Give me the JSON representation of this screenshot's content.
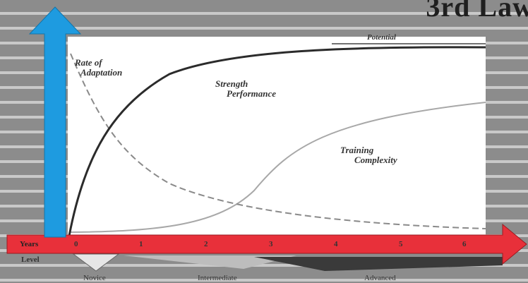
{
  "title": "3rd Law",
  "colors": {
    "background": "#8f8f8f",
    "plot_background": "#ffffff",
    "y_arrow": "#1e9be0",
    "x_arrow": "#e8303a",
    "strength_curve": "#2b2b2b",
    "complexity_curve": "#a8a8a8",
    "adaptation_curve": "#8a8a8a"
  },
  "curves": {
    "potential": {
      "label": "Potential"
    },
    "rate_of_adaptation": {
      "label_line1": "Rate of",
      "label_line2": "Adaptation"
    },
    "strength_performance": {
      "label_line1": "Strength",
      "label_line2": "Performance"
    },
    "training_complexity": {
      "label_line1": "Training",
      "label_line2": "Complexity"
    }
  },
  "x_axis": {
    "label": "Years",
    "ticks": [
      "0",
      "1",
      "2",
      "3",
      "4",
      "5",
      "6"
    ]
  },
  "y_axis": {
    "label": "Level"
  },
  "stages": [
    "Novice",
    "Intermediate",
    "Advanced"
  ]
}
